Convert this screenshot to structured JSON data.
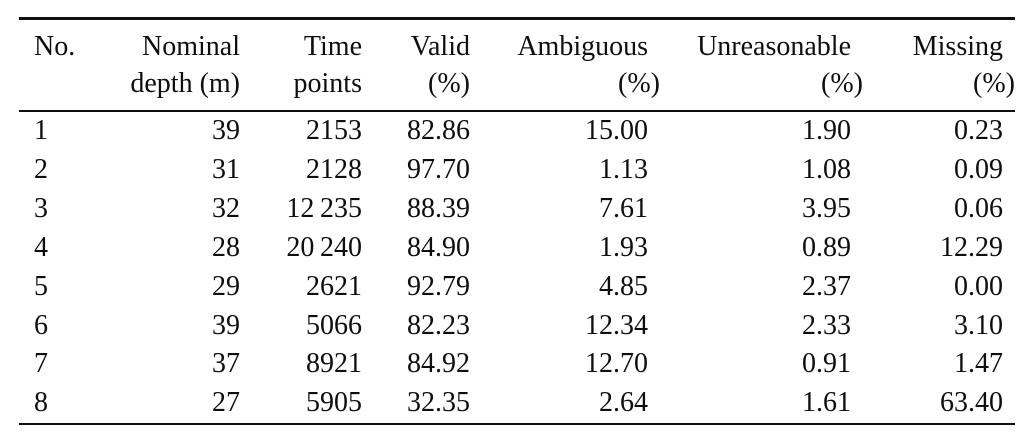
{
  "colors": {
    "background": "#ffffff",
    "text": "#0e0e0e",
    "rule": "#0e0e0e"
  },
  "table": {
    "columns": [
      {
        "id": "no",
        "line1": "No.",
        "line2": ""
      },
      {
        "id": "nominal-depth",
        "line1": "Nominal",
        "line2": "depth (m)"
      },
      {
        "id": "time-points",
        "line1": "Time",
        "line2": "points"
      },
      {
        "id": "valid",
        "line1": "Valid",
        "line2": "(%)"
      },
      {
        "id": "ambiguous",
        "line1": "Ambiguous",
        "line2": "(%)"
      },
      {
        "id": "unreasonable",
        "line1": "Unreasonable",
        "line2": "(%)"
      },
      {
        "id": "missing",
        "line1": "Missing",
        "line2": "(%)"
      }
    ],
    "rows": [
      [
        "1",
        "39",
        "2153",
        "82.86",
        "15.00",
        "1.90",
        "0.23"
      ],
      [
        "2",
        "31",
        "2128",
        "97.70",
        "1.13",
        "1.08",
        "0.09"
      ],
      [
        "3",
        "32",
        "12 235",
        "88.39",
        "7.61",
        "3.95",
        "0.06"
      ],
      [
        "4",
        "28",
        "20 240",
        "84.90",
        "1.93",
        "0.89",
        "12.29"
      ],
      [
        "5",
        "29",
        "2621",
        "92.79",
        "4.85",
        "2.37",
        "0.00"
      ],
      [
        "6",
        "39",
        "5066",
        "82.23",
        "12.34",
        "2.33",
        "3.10"
      ],
      [
        "7",
        "37",
        "8921",
        "84.92",
        "12.70",
        "0.91",
        "1.47"
      ],
      [
        "8",
        "27",
        "5905",
        "32.35",
        "2.64",
        "1.61",
        "63.40"
      ]
    ]
  }
}
